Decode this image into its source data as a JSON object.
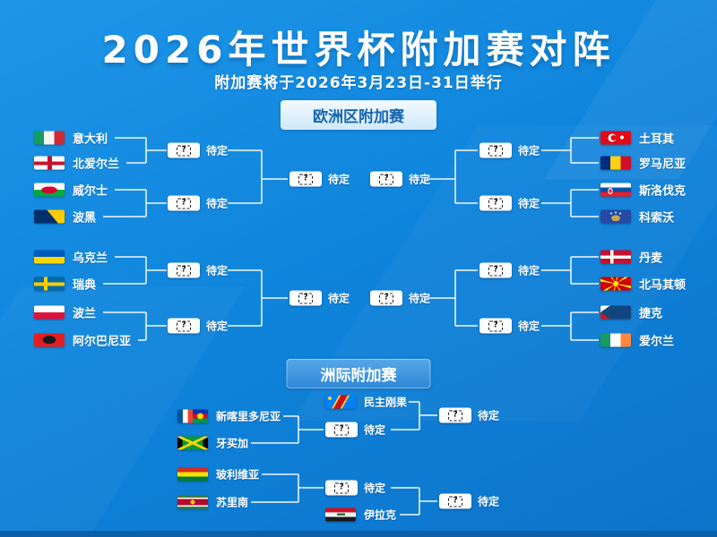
{
  "header": {
    "title": "2026年世界杯附加赛对阵",
    "subtitle": "附加赛将于2026年3月23日-31日举行"
  },
  "marks": {
    "tbd": "待定",
    "question": "?"
  },
  "colors": {
    "background_top": "#1e96e8",
    "background_bottom": "#0d73ca",
    "bottom_strip": "#0a61aa",
    "line": "#ffffff",
    "badge_europe_bg": "#dceefb",
    "badge_europe_text": "#1565ae",
    "badge_intercontinental_bg": "#3d95dd",
    "badge_intercontinental_text": "#ffffff"
  },
  "sections": {
    "europe": {
      "badge": "欧洲区附加赛",
      "groups": [
        {
          "left_teams": [
            {
              "name": "意大利",
              "flag": "italy"
            },
            {
              "name": "北爱尔兰",
              "flag": "northern-ireland"
            },
            {
              "name": "威尔士",
              "flag": "wales"
            },
            {
              "name": "波黑",
              "flag": "bosnia-herzegovina"
            }
          ],
          "right_teams": [
            {
              "name": "土耳其",
              "flag": "turkey"
            },
            {
              "name": "罗马尼亚",
              "flag": "romania"
            },
            {
              "name": "斯洛伐克",
              "flag": "slovakia"
            },
            {
              "name": "科索沃",
              "flag": "kosovo"
            }
          ]
        },
        {
          "left_teams": [
            {
              "name": "乌克兰",
              "flag": "ukraine"
            },
            {
              "name": "瑞典",
              "flag": "sweden"
            },
            {
              "name": "波兰",
              "flag": "poland"
            },
            {
              "name": "阿尔巴尼亚",
              "flag": "albania"
            }
          ],
          "right_teams": [
            {
              "name": "丹麦",
              "flag": "denmark"
            },
            {
              "name": "北马其顿",
              "flag": "north-macedonia"
            },
            {
              "name": "捷克",
              "flag": "czech-republic"
            },
            {
              "name": "爱尔兰",
              "flag": "ireland"
            }
          ]
        }
      ]
    },
    "intercontinental": {
      "badge": "洲际附加赛",
      "paths": [
        {
          "pair": [
            {
              "name": "新喀里多尼亚",
              "flag": "new-caledonia"
            },
            {
              "name": "牙买加",
              "flag": "jamaica"
            }
          ],
          "seeded": {
            "name": "民主刚果",
            "flag": "dr-congo"
          }
        },
        {
          "pair": [
            {
              "name": "玻利维亚",
              "flag": "bolivia"
            },
            {
              "name": "苏里南",
              "flag": "suriname"
            }
          ],
          "seeded": {
            "name": "伊拉克",
            "flag": "iraq"
          }
        }
      ]
    }
  }
}
